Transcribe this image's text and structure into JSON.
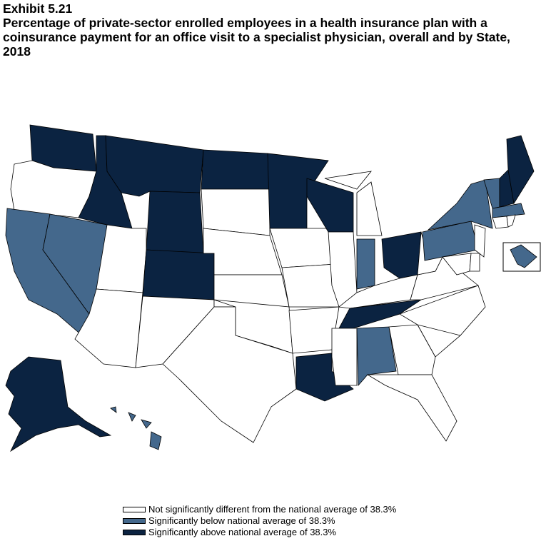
{
  "header": {
    "exhibit": "Exhibit 5.21",
    "title": "Percentage of private-sector enrolled employees in a health insurance plan with a coinsurance payment for an office visit to a specialist physician, overall and by State, 2018"
  },
  "colors": {
    "not_different": "#ffffff",
    "below": "#44688c",
    "above": "#0b2341"
  },
  "legend": [
    {
      "key": "not_different",
      "label": "Not significantly different from the national average of 38.3%"
    },
    {
      "key": "below",
      "label": "Significantly below national average of 38.3%"
    },
    {
      "key": "above",
      "label": "Significantly above national average of 38.3%"
    }
  ],
  "national_average_percent": 38.3,
  "states": {
    "above": [
      "WA",
      "MT",
      "ID",
      "WY",
      "ND",
      "MN",
      "WI",
      "CO",
      "OH",
      "TN",
      "LA",
      "AK",
      "NH",
      "ME"
    ],
    "below": [
      "CA",
      "NV",
      "IN",
      "AL",
      "NY",
      "PA",
      "VT",
      "MA",
      "HI",
      "DC"
    ],
    "not_different": [
      "OR",
      "UT",
      "AZ",
      "NM",
      "SD",
      "NE",
      "KS",
      "OK",
      "TX",
      "IA",
      "MO",
      "AR",
      "MS",
      "IL",
      "MI",
      "KY",
      "GA",
      "FL",
      "SC",
      "NC",
      "VA",
      "WV",
      "NJ",
      "DE",
      "MD",
      "CT",
      "RI"
    ]
  }
}
